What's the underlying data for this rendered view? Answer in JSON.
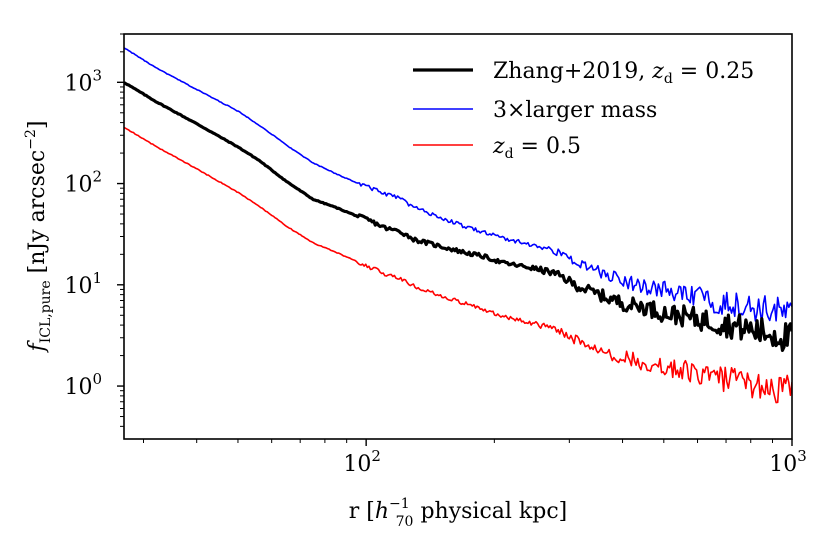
{
  "chart_data": {
    "type": "line",
    "title": "",
    "xlabel": "r [h_70^-1 physical kpc]",
    "ylabel": "f_ICL,pure [nJy arcsec^-2]",
    "xscale": "log",
    "yscale": "log",
    "xlim": [
      27,
      1000
    ],
    "ylim": [
      0.3,
      3000
    ],
    "legend_position": "top-right",
    "x_major_ticks": [
      {
        "value": 100,
        "base": "10",
        "exp": "2"
      },
      {
        "value": 1000,
        "base": "10",
        "exp": "3"
      }
    ],
    "y_major_ticks": [
      {
        "value": 1,
        "base": "10",
        "exp": "0"
      },
      {
        "value": 10,
        "base": "10",
        "exp": "1"
      },
      {
        "value": 100,
        "base": "10",
        "exp": "2"
      },
      {
        "value": 1000,
        "base": "10",
        "exp": "3"
      }
    ],
    "x_minor_ticks": [
      30,
      40,
      50,
      60,
      70,
      80,
      90,
      200,
      300,
      400,
      500,
      600,
      700,
      800,
      900
    ],
    "y_minor_ticks": [
      0.4,
      0.5,
      0.6,
      0.7,
      0.8,
      0.9,
      2,
      3,
      4,
      5,
      6,
      7,
      8,
      9,
      20,
      30,
      40,
      50,
      60,
      70,
      80,
      90,
      200,
      300,
      400,
      500,
      600,
      700,
      800,
      900,
      2000,
      3000
    ],
    "series": [
      {
        "name": "Zhang+2019, z_d = 0.25",
        "label_main": "Zhang+2019, ",
        "label_var": "z",
        "label_sub": "d",
        "label_rest": " = 0.25",
        "color": "#000000",
        "width": 3.2,
        "x": [
          27,
          32,
          40,
          50,
          56,
          65,
          75,
          85,
          95,
          100,
          106,
          112,
          120,
          130,
          150,
          170,
          190,
          210,
          240,
          270,
          290,
          310,
          340,
          370,
          410,
          450,
          500,
          560,
          620,
          700,
          780,
          860,
          930,
          980,
          1000
        ],
        "y": [
          1000,
          650,
          390,
          230,
          170,
          105,
          70,
          58,
          48,
          45,
          40,
          36,
          34,
          28,
          24,
          21,
          19,
          16.5,
          15,
          13.5,
          12,
          10,
          8.6,
          7.5,
          6.5,
          6.2,
          5.4,
          5.0,
          4.6,
          4.2,
          3.8,
          3.5,
          3.3,
          3.1,
          3.0
        ]
      },
      {
        "name": "3×larger mass",
        "label_main": "3×larger mass",
        "label_var": "",
        "label_sub": "",
        "label_rest": "",
        "color": "#0000ff",
        "width": 1.6,
        "x": [
          27,
          32,
          40,
          50,
          56,
          65,
          75,
          85,
          95,
          100,
          106,
          112,
          120,
          130,
          150,
          170,
          190,
          210,
          240,
          270,
          290,
          310,
          340,
          370,
          410,
          450,
          500,
          560,
          620,
          700,
          780,
          860,
          930,
          980,
          1000
        ],
        "y": [
          2200,
          1400,
          850,
          520,
          380,
          240,
          160,
          125,
          102,
          95,
          86,
          78,
          72,
          58,
          46,
          38,
          33,
          29,
          25.5,
          22.5,
          20,
          17,
          14.5,
          12.5,
          11,
          10,
          9,
          8,
          7.5,
          6.8,
          6.3,
          5.9,
          5.6,
          5.3,
          5.1
        ]
      },
      {
        "name": "z_d = 0.5",
        "label_main": "",
        "label_var": "z",
        "label_sub": "d",
        "label_rest": " = 0.5",
        "color": "#ff0000",
        "width": 1.6,
        "x": [
          27,
          32,
          40,
          50,
          56,
          65,
          75,
          85,
          95,
          100,
          106,
          112,
          120,
          130,
          150,
          170,
          190,
          210,
          240,
          270,
          290,
          310,
          340,
          370,
          410,
          450,
          500,
          560,
          620,
          700,
          780,
          860,
          930,
          980,
          1000
        ],
        "y": [
          360,
          235,
          140,
          82,
          60,
          38,
          26,
          21,
          17,
          15.5,
          14,
          12.6,
          11.8,
          9.6,
          7.8,
          6.6,
          5.7,
          4.9,
          4.3,
          3.8,
          3.4,
          2.9,
          2.5,
          2.15,
          1.9,
          1.75,
          1.58,
          1.45,
          1.32,
          1.2,
          1.1,
          1.02,
          0.97,
          0.93,
          0.9
        ]
      }
    ]
  },
  "axes": {
    "xlabel_prefix": "r [",
    "xlabel_h": "h",
    "xlabel_sub": "70",
    "xlabel_sup": "−1",
    "xlabel_suffix": " physical kpc]",
    "ylabel_f": "f",
    "ylabel_sub": "ICL,pure",
    "ylabel_unit": " [nJy arcsec",
    "ylabel_sup": "−2",
    "ylabel_close": "]"
  }
}
